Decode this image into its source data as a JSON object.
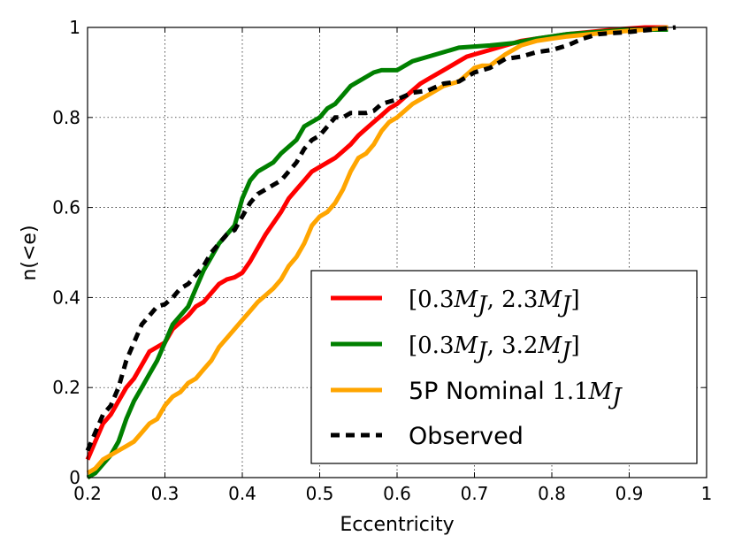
{
  "chart_data": {
    "type": "line",
    "title": "",
    "xlabel": "Eccentricity",
    "ylabel": "n(<e)",
    "xlim": [
      0.2,
      1.0
    ],
    "ylim": [
      0.0,
      1.0
    ],
    "grid": true,
    "legend_position": "bottom-right",
    "x_ticks": [
      {
        "value": 0.2,
        "label": "0.2"
      },
      {
        "value": 0.3,
        "label": "0.3"
      },
      {
        "value": 0.4,
        "label": "0.4"
      },
      {
        "value": 0.5,
        "label": "0.5"
      },
      {
        "value": 0.6,
        "label": "0.6"
      },
      {
        "value": 0.7,
        "label": "0.7"
      },
      {
        "value": 0.8,
        "label": "0.8"
      },
      {
        "value": 0.9,
        "label": "0.9"
      },
      {
        "value": 1.0,
        "label": "1"
      }
    ],
    "y_ticks": [
      {
        "value": 0.0,
        "label": "0"
      },
      {
        "value": 0.2,
        "label": "0.2"
      },
      {
        "value": 0.4,
        "label": "0.4"
      },
      {
        "value": 0.6,
        "label": "0.6"
      },
      {
        "value": 0.8,
        "label": "0.8"
      },
      {
        "value": 1.0,
        "label": "1"
      }
    ],
    "series": [
      {
        "name": "[0.3M_J, 2.3M_J]",
        "legend_prefix": "[0.3",
        "legend_mid": ", 2.3",
        "legend_suffix": "]",
        "color": "#ff0000",
        "dash": "solid",
        "points": [
          [
            0.2,
            0.04
          ],
          [
            0.21,
            0.08
          ],
          [
            0.22,
            0.12
          ],
          [
            0.23,
            0.14
          ],
          [
            0.24,
            0.17
          ],
          [
            0.25,
            0.2
          ],
          [
            0.26,
            0.22
          ],
          [
            0.27,
            0.25
          ],
          [
            0.28,
            0.28
          ],
          [
            0.29,
            0.29
          ],
          [
            0.3,
            0.3
          ],
          [
            0.31,
            0.33
          ],
          [
            0.32,
            0.345
          ],
          [
            0.33,
            0.36
          ],
          [
            0.34,
            0.38
          ],
          [
            0.35,
            0.39
          ],
          [
            0.36,
            0.41
          ],
          [
            0.37,
            0.43
          ],
          [
            0.38,
            0.44
          ],
          [
            0.39,
            0.445
          ],
          [
            0.4,
            0.455
          ],
          [
            0.41,
            0.48
          ],
          [
            0.42,
            0.51
          ],
          [
            0.43,
            0.54
          ],
          [
            0.44,
            0.565
          ],
          [
            0.45,
            0.59
          ],
          [
            0.46,
            0.62
          ],
          [
            0.47,
            0.64
          ],
          [
            0.48,
            0.66
          ],
          [
            0.49,
            0.68
          ],
          [
            0.5,
            0.69
          ],
          [
            0.51,
            0.7
          ],
          [
            0.52,
            0.71
          ],
          [
            0.53,
            0.725
          ],
          [
            0.54,
            0.74
          ],
          [
            0.55,
            0.76
          ],
          [
            0.56,
            0.775
          ],
          [
            0.57,
            0.79
          ],
          [
            0.58,
            0.805
          ],
          [
            0.59,
            0.82
          ],
          [
            0.6,
            0.83
          ],
          [
            0.61,
            0.845
          ],
          [
            0.62,
            0.86
          ],
          [
            0.63,
            0.875
          ],
          [
            0.64,
            0.885
          ],
          [
            0.65,
            0.895
          ],
          [
            0.66,
            0.905
          ],
          [
            0.67,
            0.915
          ],
          [
            0.68,
            0.925
          ],
          [
            0.69,
            0.935
          ],
          [
            0.7,
            0.94
          ],
          [
            0.72,
            0.95
          ],
          [
            0.74,
            0.96
          ],
          [
            0.76,
            0.97
          ],
          [
            0.78,
            0.975
          ],
          [
            0.8,
            0.98
          ],
          [
            0.82,
            0.985
          ],
          [
            0.85,
            0.99
          ],
          [
            0.88,
            0.995
          ],
          [
            0.92,
            1.0
          ],
          [
            0.95,
            1.0
          ]
        ]
      },
      {
        "name": "[0.3M_J, 3.2M_J]",
        "legend_prefix": "[0.3",
        "legend_mid": ", 3.2",
        "legend_suffix": "]",
        "color": "#008000",
        "dash": "solid",
        "points": [
          [
            0.2,
            0.0
          ],
          [
            0.21,
            0.01
          ],
          [
            0.22,
            0.03
          ],
          [
            0.23,
            0.05
          ],
          [
            0.24,
            0.08
          ],
          [
            0.25,
            0.13
          ],
          [
            0.26,
            0.17
          ],
          [
            0.27,
            0.2
          ],
          [
            0.28,
            0.23
          ],
          [
            0.29,
            0.26
          ],
          [
            0.3,
            0.3
          ],
          [
            0.31,
            0.34
          ],
          [
            0.32,
            0.36
          ],
          [
            0.33,
            0.38
          ],
          [
            0.34,
            0.42
          ],
          [
            0.35,
            0.46
          ],
          [
            0.36,
            0.49
          ],
          [
            0.37,
            0.52
          ],
          [
            0.38,
            0.54
          ],
          [
            0.39,
            0.56
          ],
          [
            0.4,
            0.62
          ],
          [
            0.41,
            0.66
          ],
          [
            0.42,
            0.68
          ],
          [
            0.43,
            0.69
          ],
          [
            0.44,
            0.7
          ],
          [
            0.45,
            0.72
          ],
          [
            0.46,
            0.735
          ],
          [
            0.47,
            0.75
          ],
          [
            0.48,
            0.78
          ],
          [
            0.49,
            0.79
          ],
          [
            0.5,
            0.8
          ],
          [
            0.51,
            0.82
          ],
          [
            0.52,
            0.83
          ],
          [
            0.53,
            0.85
          ],
          [
            0.54,
            0.87
          ],
          [
            0.55,
            0.88
          ],
          [
            0.56,
            0.89
          ],
          [
            0.57,
            0.9
          ],
          [
            0.58,
            0.905
          ],
          [
            0.6,
            0.905
          ],
          [
            0.61,
            0.915
          ],
          [
            0.62,
            0.925
          ],
          [
            0.64,
            0.935
          ],
          [
            0.66,
            0.945
          ],
          [
            0.68,
            0.955
          ],
          [
            0.72,
            0.96
          ],
          [
            0.75,
            0.965
          ],
          [
            0.78,
            0.975
          ],
          [
            0.82,
            0.985
          ],
          [
            0.86,
            0.99
          ],
          [
            0.9,
            0.995
          ],
          [
            0.95,
            0.995
          ]
        ]
      },
      {
        "name": "5P Nominal 1.1M_J",
        "legend_prefix": "5P Nominal",
        "legend_mid": "1.1",
        "legend_suffix": "",
        "color": "#ffa500",
        "dash": "solid",
        "points": [
          [
            0.2,
            0.01
          ],
          [
            0.21,
            0.02
          ],
          [
            0.22,
            0.04
          ],
          [
            0.23,
            0.05
          ],
          [
            0.24,
            0.06
          ],
          [
            0.25,
            0.07
          ],
          [
            0.26,
            0.08
          ],
          [
            0.27,
            0.1
          ],
          [
            0.28,
            0.12
          ],
          [
            0.29,
            0.13
          ],
          [
            0.3,
            0.16
          ],
          [
            0.31,
            0.18
          ],
          [
            0.32,
            0.19
          ],
          [
            0.33,
            0.21
          ],
          [
            0.34,
            0.22
          ],
          [
            0.35,
            0.24
          ],
          [
            0.36,
            0.26
          ],
          [
            0.37,
            0.29
          ],
          [
            0.38,
            0.31
          ],
          [
            0.39,
            0.33
          ],
          [
            0.4,
            0.35
          ],
          [
            0.41,
            0.37
          ],
          [
            0.42,
            0.39
          ],
          [
            0.43,
            0.405
          ],
          [
            0.44,
            0.42
          ],
          [
            0.45,
            0.44
          ],
          [
            0.46,
            0.47
          ],
          [
            0.47,
            0.49
          ],
          [
            0.48,
            0.52
          ],
          [
            0.49,
            0.56
          ],
          [
            0.5,
            0.58
          ],
          [
            0.51,
            0.59
          ],
          [
            0.52,
            0.61
          ],
          [
            0.53,
            0.64
          ],
          [
            0.54,
            0.68
          ],
          [
            0.55,
            0.71
          ],
          [
            0.56,
            0.72
          ],
          [
            0.57,
            0.74
          ],
          [
            0.58,
            0.77
          ],
          [
            0.59,
            0.79
          ],
          [
            0.6,
            0.8
          ],
          [
            0.61,
            0.815
          ],
          [
            0.62,
            0.83
          ],
          [
            0.63,
            0.84
          ],
          [
            0.64,
            0.85
          ],
          [
            0.65,
            0.86
          ],
          [
            0.66,
            0.87
          ],
          [
            0.67,
            0.875
          ],
          [
            0.68,
            0.88
          ],
          [
            0.69,
            0.895
          ],
          [
            0.7,
            0.91
          ],
          [
            0.71,
            0.915
          ],
          [
            0.72,
            0.915
          ],
          [
            0.74,
            0.94
          ],
          [
            0.76,
            0.96
          ],
          [
            0.78,
            0.97
          ],
          [
            0.8,
            0.975
          ],
          [
            0.82,
            0.98
          ],
          [
            0.85,
            0.985
          ],
          [
            0.88,
            0.99
          ],
          [
            0.92,
            0.995
          ],
          [
            0.95,
            1.0
          ]
        ]
      },
      {
        "name": "Observed",
        "legend_prefix": "Observed",
        "legend_mid": "",
        "legend_suffix": "",
        "color": "#000000",
        "dash": "dashed",
        "points": [
          [
            0.2,
            0.06
          ],
          [
            0.21,
            0.1
          ],
          [
            0.22,
            0.14
          ],
          [
            0.23,
            0.16
          ],
          [
            0.24,
            0.2
          ],
          [
            0.25,
            0.26
          ],
          [
            0.26,
            0.3
          ],
          [
            0.27,
            0.34
          ],
          [
            0.28,
            0.36
          ],
          [
            0.29,
            0.38
          ],
          [
            0.3,
            0.385
          ],
          [
            0.31,
            0.4
          ],
          [
            0.32,
            0.42
          ],
          [
            0.33,
            0.43
          ],
          [
            0.34,
            0.45
          ],
          [
            0.35,
            0.47
          ],
          [
            0.36,
            0.5
          ],
          [
            0.37,
            0.52
          ],
          [
            0.38,
            0.54
          ],
          [
            0.39,
            0.55
          ],
          [
            0.4,
            0.58
          ],
          [
            0.41,
            0.61
          ],
          [
            0.42,
            0.63
          ],
          [
            0.43,
            0.64
          ],
          [
            0.44,
            0.65
          ],
          [
            0.45,
            0.66
          ],
          [
            0.46,
            0.68
          ],
          [
            0.47,
            0.7
          ],
          [
            0.48,
            0.73
          ],
          [
            0.49,
            0.75
          ],
          [
            0.5,
            0.76
          ],
          [
            0.51,
            0.78
          ],
          [
            0.52,
            0.8
          ],
          [
            0.53,
            0.8
          ],
          [
            0.54,
            0.81
          ],
          [
            0.56,
            0.81
          ],
          [
            0.57,
            0.815
          ],
          [
            0.58,
            0.83
          ],
          [
            0.6,
            0.84
          ],
          [
            0.62,
            0.855
          ],
          [
            0.64,
            0.86
          ],
          [
            0.66,
            0.875
          ],
          [
            0.68,
            0.88
          ],
          [
            0.7,
            0.9
          ],
          [
            0.72,
            0.91
          ],
          [
            0.74,
            0.93
          ],
          [
            0.76,
            0.935
          ],
          [
            0.78,
            0.945
          ],
          [
            0.8,
            0.95
          ],
          [
            0.82,
            0.96
          ],
          [
            0.84,
            0.975
          ],
          [
            0.86,
            0.985
          ],
          [
            0.9,
            0.99
          ],
          [
            0.93,
            0.995
          ],
          [
            0.96,
            1.0
          ]
        ]
      }
    ],
    "legend_math_symbol": "M",
    "legend_math_subscript": "J"
  }
}
